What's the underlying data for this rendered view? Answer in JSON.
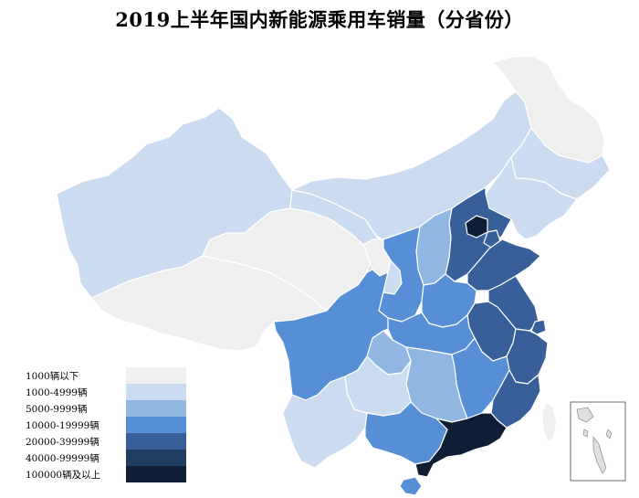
{
  "title": "2019上半年国内新能源乘用车销量（分省份）",
  "legend": [
    {
      "label": "1000辆以下",
      "color": "#efefef"
    },
    {
      "label": "1000-4999辆",
      "color": "#ccdcf0"
    },
    {
      "label": "5000-9999辆",
      "color": "#92b6e2"
    },
    {
      "label": "10000-19999辆",
      "color": "#568fd6"
    },
    {
      "label": "20000-39999辆",
      "color": "#385f99"
    },
    {
      "label": "40000-99999辆",
      "color": "#233e63"
    },
    {
      "label": "100000辆及以上",
      "color": "#0f1e35"
    }
  ],
  "province_levels": {
    "xinjiang": 1,
    "tibet": 0,
    "qinghai": 0,
    "gansu": 1,
    "inner-mongolia": 1,
    "heilongjiang": 0,
    "jilin": 1,
    "liaoning": 1,
    "beijing": 6,
    "tianjin": 4,
    "hebei": 4,
    "shanxi": 2,
    "shaanxi": 3,
    "ningxia": 0,
    "shandong": 4,
    "henan": 3,
    "jiangsu": 4,
    "shanghai": 4,
    "anhui": 4,
    "hubei": 3,
    "zhejiang": 4,
    "sichuan": 3,
    "chongqing": 2,
    "guizhou": 1,
    "yunnan": 1,
    "hunan": 2,
    "jiangxi": 3,
    "fujian": 4,
    "guangxi": 3,
    "guangdong": 6,
    "hainan": 3,
    "taiwan": 0,
    "south-china-sea-islands": 0
  }
}
